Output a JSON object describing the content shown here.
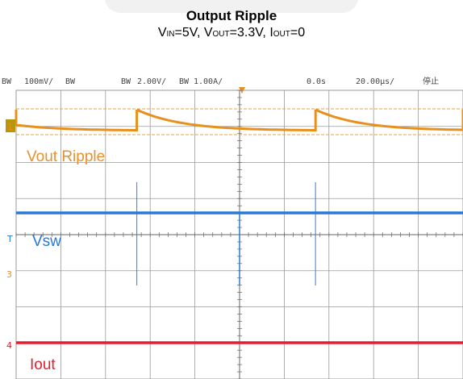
{
  "header": {
    "title": "Output Ripple",
    "cond_vin_main": "V",
    "cond_vin_sub": "IN",
    "cond_vin_val": "=5V, ",
    "cond_vout_main": "V",
    "cond_vout_sub": "OUT",
    "cond_vout_val": "=3.3V, ",
    "cond_iout_main": "I",
    "cond_iout_sub": "OUT",
    "cond_iout_val": "=0"
  },
  "scope_bar": {
    "ch1_bw": "BW",
    "ch1_scale": "100mV/",
    "ch2_bw": "BW",
    "ch3_bw": "BW",
    "ch3_scale": "2.00V/",
    "ch4_bw": "BW",
    "ch4_scale": "1.00A/",
    "trigger_pos": "0.0s",
    "timebase": "20.00µs/",
    "run_state": "停止"
  },
  "chart_data": {
    "type": "line",
    "grid": true,
    "grid_divisions": {
      "x": 10,
      "y": 8
    },
    "traces": [
      {
        "name": "Vout Ripple",
        "color": "#e8901e",
        "channel_marker": "1",
        "waveform": "sawtooth",
        "spikes_at_div": [
          2.7,
          6.7
        ],
        "label_color": "#e8902e"
      },
      {
        "name": "Vsw",
        "color": "#2a78d6",
        "channel_marker": "T",
        "waveform": "flat-with-switching-spikes",
        "spikes_at_div": [
          2.7,
          6.7
        ],
        "label_color": "#2a78d6"
      },
      {
        "name": "",
        "color": "#f28c1a",
        "channel_marker": "3",
        "waveform": "hidden"
      },
      {
        "name": "Iout",
        "color": "#e0202e",
        "channel_marker": "4",
        "waveform": "flat",
        "label_color": "#e0202e"
      }
    ],
    "cursors": {
      "color": "#e8a24a",
      "style": "dashed"
    }
  },
  "colors": {
    "ch_orange": "#e8901e",
    "ch_blue": "#2a78d6",
    "ch_red": "#e0202e",
    "grid": "#9a9a9a"
  }
}
